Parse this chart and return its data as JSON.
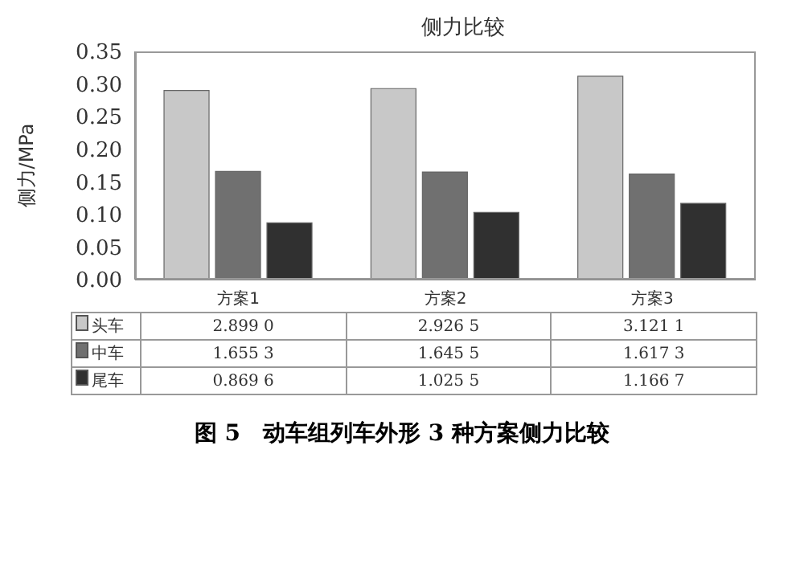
{
  "chart_data": {
    "type": "bar",
    "title": "侧力比较",
    "ylabel": "侧力/MPa",
    "categories": [
      "方案1",
      "方案2",
      "方案3"
    ],
    "series": [
      {
        "name": "头车",
        "color": "#c8c8c8",
        "values": [
          0.29,
          0.293,
          0.312
        ]
      },
      {
        "name": "中车",
        "color": "#707070",
        "values": [
          0.166,
          0.165,
          0.162
        ]
      },
      {
        "name": "尾车",
        "color": "#303030",
        "values": [
          0.087,
          0.103,
          0.117
        ]
      }
    ],
    "ylim": [
      0,
      0.35
    ],
    "yticks": [
      {
        "value": 0,
        "label": "0.00"
      },
      {
        "value": 0.05,
        "label": "0.05"
      },
      {
        "value": 0.1,
        "label": "0.10"
      },
      {
        "value": 0.15,
        "label": "0.15"
      },
      {
        "value": 0.2,
        "label": "0.20"
      },
      {
        "value": 0.25,
        "label": "0.25"
      },
      {
        "value": 0.3,
        "label": "0.30"
      },
      {
        "value": 0.35,
        "label": "0.35"
      }
    ],
    "grid": false,
    "legend": "bottom",
    "annotations": [
      "2.899 0",
      "2.926 5",
      "3.121 1",
      "1.655 3",
      "1.645 5",
      "1.617 3",
      "0.869 6",
      "1.025 5",
      "1.166 7",
      "图 5　动车组列车外形 3 种方案侧力比较"
    ]
  }
}
